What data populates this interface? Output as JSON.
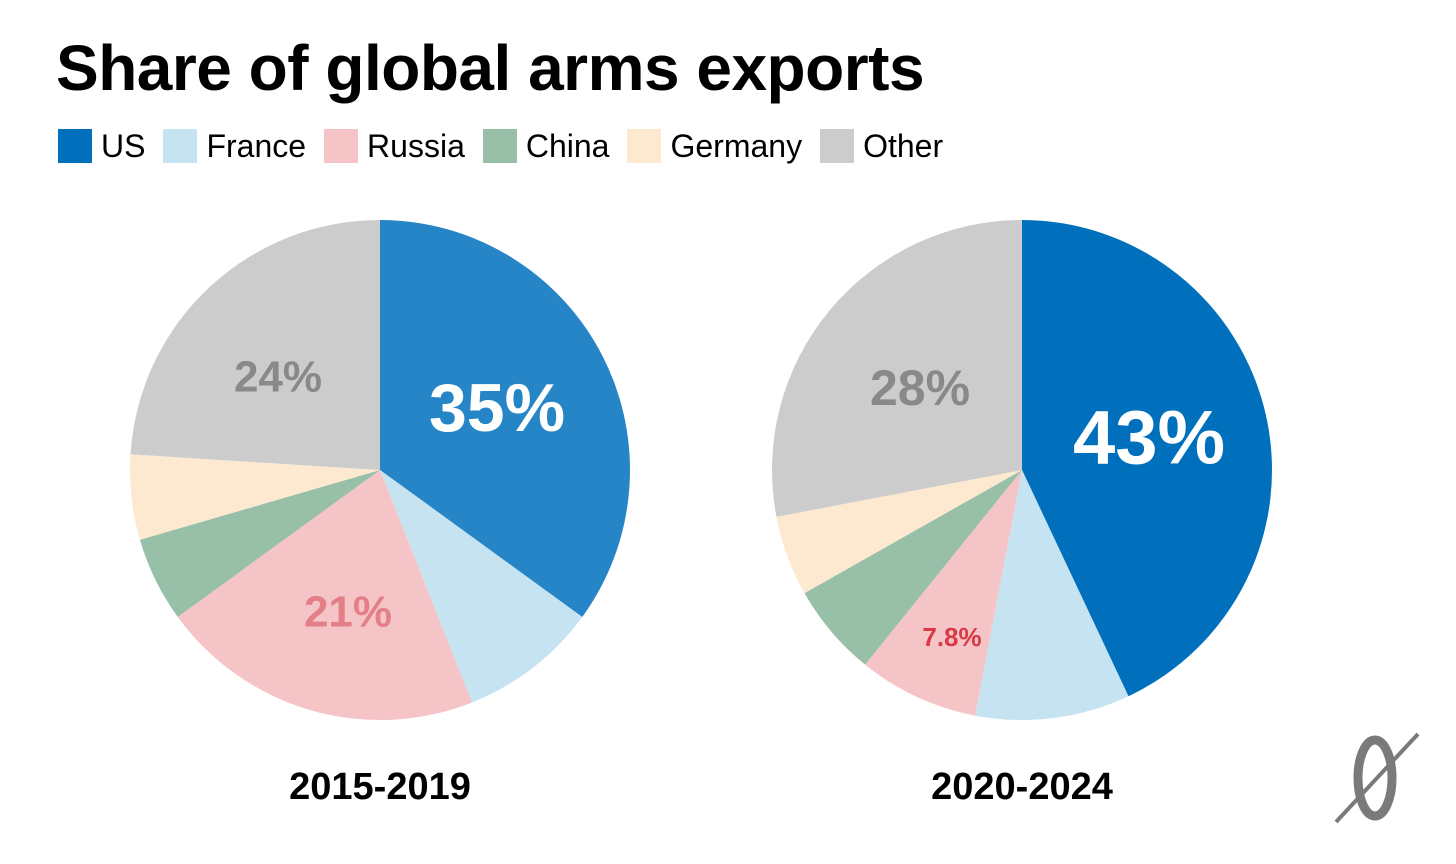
{
  "title": "Share of global arms exports",
  "colors": {
    "US": "#2585c6",
    "US_2020": "#0070bd",
    "France": "#c5e3f1",
    "Russia": "#f5c4c6",
    "China": "#98c0a9",
    "Germany": "#fde9cf",
    "Other": "#cccccc",
    "label_white": "#ffffff",
    "label_gray": "#898989",
    "label_pink": "#e37f87",
    "label_red": "#d83a45"
  },
  "legend": [
    {
      "label": "US",
      "color": "#0070bd"
    },
    {
      "label": "France",
      "color": "#c5e3f1"
    },
    {
      "label": "Russia",
      "color": "#f5c4c6"
    },
    {
      "label": "China",
      "color": "#98c0a9"
    },
    {
      "label": "Germany",
      "color": "#fde9cf"
    },
    {
      "label": "Other",
      "color": "#cccccc"
    }
  ],
  "chart_data": [
    {
      "type": "pie",
      "title": "2015-2019",
      "slices": [
        {
          "name": "US",
          "value": 35,
          "label": "35%"
        },
        {
          "name": "France",
          "value": 9,
          "label": ""
        },
        {
          "name": "Russia",
          "value": 21,
          "label": "21%"
        },
        {
          "name": "China",
          "value": 5.5,
          "label": ""
        },
        {
          "name": "Germany",
          "value": 5.5,
          "label": ""
        },
        {
          "name": "Other",
          "value": 24,
          "label": "24%"
        }
      ]
    },
    {
      "type": "pie",
      "title": "2020-2024",
      "slices": [
        {
          "name": "US",
          "value": 43,
          "label": "43%"
        },
        {
          "name": "France",
          "value": 10,
          "label": ""
        },
        {
          "name": "Russia",
          "value": 7.8,
          "label": "7.8%"
        },
        {
          "name": "China",
          "value": 6,
          "label": ""
        },
        {
          "name": "Germany",
          "value": 5.2,
          "label": ""
        },
        {
          "name": "Other",
          "value": 28,
          "label": "28%"
        }
      ]
    }
  ],
  "logo": {
    "icon": "publication-logo-icon"
  }
}
